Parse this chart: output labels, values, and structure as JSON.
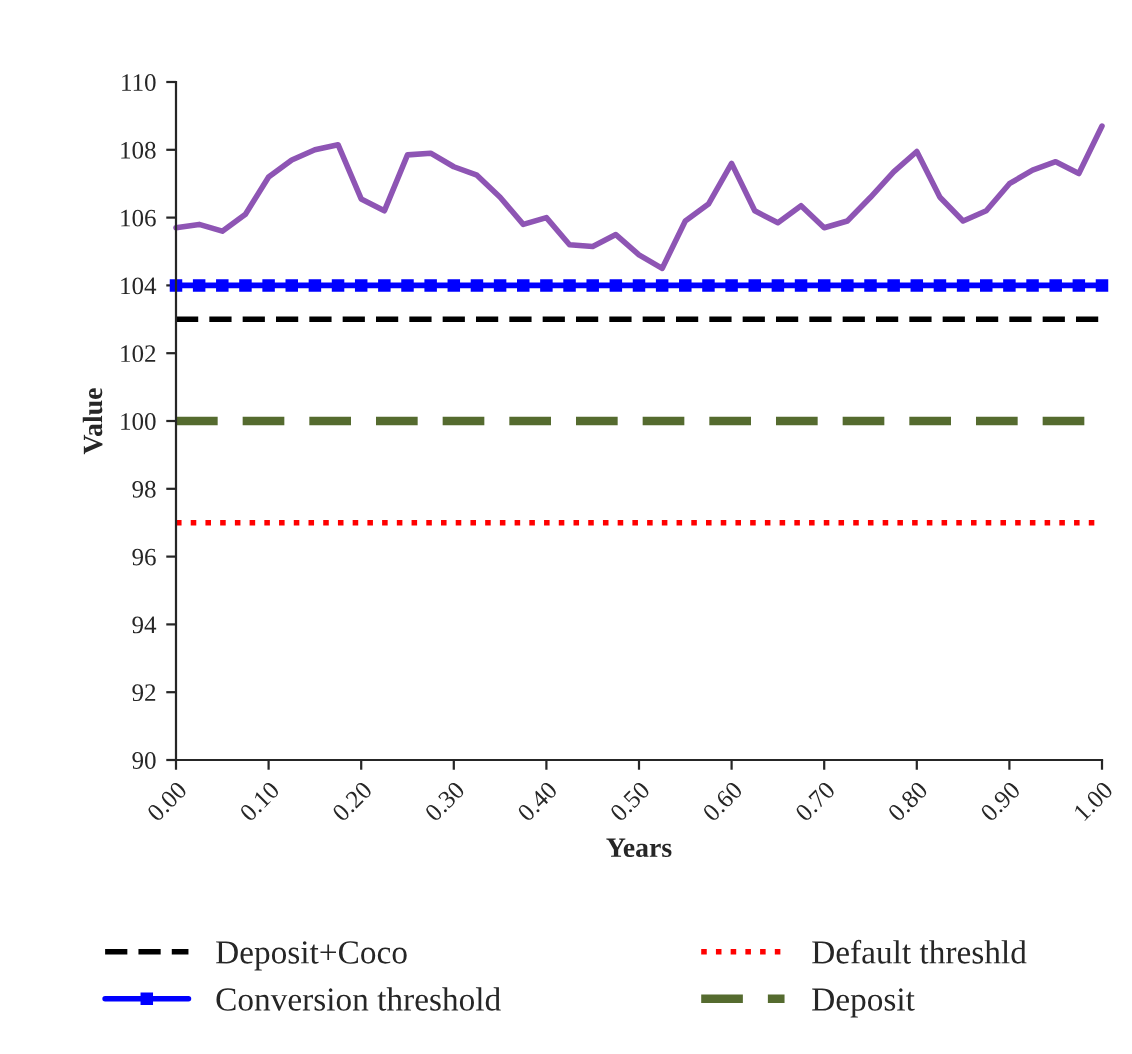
{
  "chart_data": {
    "type": "line",
    "xlabel": "Years",
    "ylabel": "Value",
    "x": [
      0,
      0.025,
      0.05,
      0.075,
      0.1,
      0.125,
      0.15,
      0.175,
      0.2,
      0.225,
      0.25,
      0.275,
      0.3,
      0.325,
      0.35,
      0.375,
      0.4,
      0.425,
      0.45,
      0.475,
      0.5,
      0.525,
      0.55,
      0.575,
      0.6,
      0.625,
      0.65,
      0.675,
      0.7,
      0.725,
      0.75,
      0.775,
      0.8,
      0.825,
      0.85,
      0.875,
      0.9,
      0.925,
      0.95,
      0.975,
      1
    ],
    "series": [
      {
        "name": "Deposit+Coco",
        "color": "#000000",
        "line_style": "dashed",
        "marker": "none",
        "values": [
          103,
          103,
          103,
          103,
          103,
          103,
          103,
          103,
          103,
          103,
          103,
          103,
          103,
          103,
          103,
          103,
          103,
          103,
          103,
          103,
          103,
          103,
          103,
          103,
          103,
          103,
          103,
          103,
          103,
          103,
          103,
          103,
          103,
          103,
          103,
          103,
          103,
          103,
          103,
          103,
          103
        ]
      },
      {
        "name": "Conversion threshold",
        "color": "#0000ff",
        "line_style": "solid",
        "marker": "square",
        "values": [
          104,
          104,
          104,
          104,
          104,
          104,
          104,
          104,
          104,
          104,
          104,
          104,
          104,
          104,
          104,
          104,
          104,
          104,
          104,
          104,
          104,
          104,
          104,
          104,
          104,
          104,
          104,
          104,
          104,
          104,
          104,
          104,
          104,
          104,
          104,
          104,
          104,
          104,
          104,
          104,
          104
        ]
      },
      {
        "name": "Default threshld",
        "color": "#ff0000",
        "line_style": "dotted",
        "marker": "none",
        "values": [
          97,
          97,
          97,
          97,
          97,
          97,
          97,
          97,
          97,
          97,
          97,
          97,
          97,
          97,
          97,
          97,
          97,
          97,
          97,
          97,
          97,
          97,
          97,
          97,
          97,
          97,
          97,
          97,
          97,
          97,
          97,
          97,
          97,
          97,
          97,
          97,
          97,
          97,
          97,
          97,
          97
        ]
      },
      {
        "name": "Deposit",
        "color": "#556b2f",
        "line_style": "dashed",
        "marker": "none",
        "values": [
          100,
          100,
          100,
          100,
          100,
          100,
          100,
          100,
          100,
          100,
          100,
          100,
          100,
          100,
          100,
          100,
          100,
          100,
          100,
          100,
          100,
          100,
          100,
          100,
          100,
          100,
          100,
          100,
          100,
          100,
          100,
          100,
          100,
          100,
          100,
          100,
          100,
          100,
          100,
          100,
          100
        ]
      },
      {
        "color": "#8e55b4",
        "line_style": "solid",
        "marker": "none",
        "values": [
          105.7,
          105.8,
          105.6,
          106.1,
          107.2,
          107.7,
          108.0,
          108.15,
          106.55,
          106.2,
          107.85,
          107.9,
          107.5,
          107.25,
          106.6,
          105.8,
          106.0,
          105.2,
          105.15,
          105.5,
          104.9,
          104.5,
          105.9,
          106.4,
          107.6,
          106.2,
          105.85,
          106.35,
          105.7,
          105.9,
          106.6,
          107.35,
          107.95,
          106.6,
          105.9,
          106.2,
          107.0,
          107.4,
          107.65,
          107.3,
          108.7
        ]
      }
    ],
    "xlim": [
      0,
      1
    ],
    "ylim": [
      90,
      110
    ],
    "xticks": [
      {
        "value": 0,
        "label": "0.00"
      },
      {
        "value": 0.1,
        "label": "0.10"
      },
      {
        "value": 0.2,
        "label": "0.20"
      },
      {
        "value": 0.3,
        "label": "0.30"
      },
      {
        "value": 0.4,
        "label": "0.40"
      },
      {
        "value": 0.5,
        "label": "0.50"
      },
      {
        "value": 0.6,
        "label": "0.60"
      },
      {
        "value": 0.7,
        "label": "0.70"
      },
      {
        "value": 0.8,
        "label": "0.80"
      },
      {
        "value": 0.9,
        "label": "0.90"
      },
      {
        "value": 1,
        "label": "1.00"
      }
    ],
    "yticks": [
      90,
      92,
      94,
      96,
      98,
      100,
      102,
      104,
      106,
      108,
      110
    ],
    "grid": false,
    "legend": "bottom"
  }
}
